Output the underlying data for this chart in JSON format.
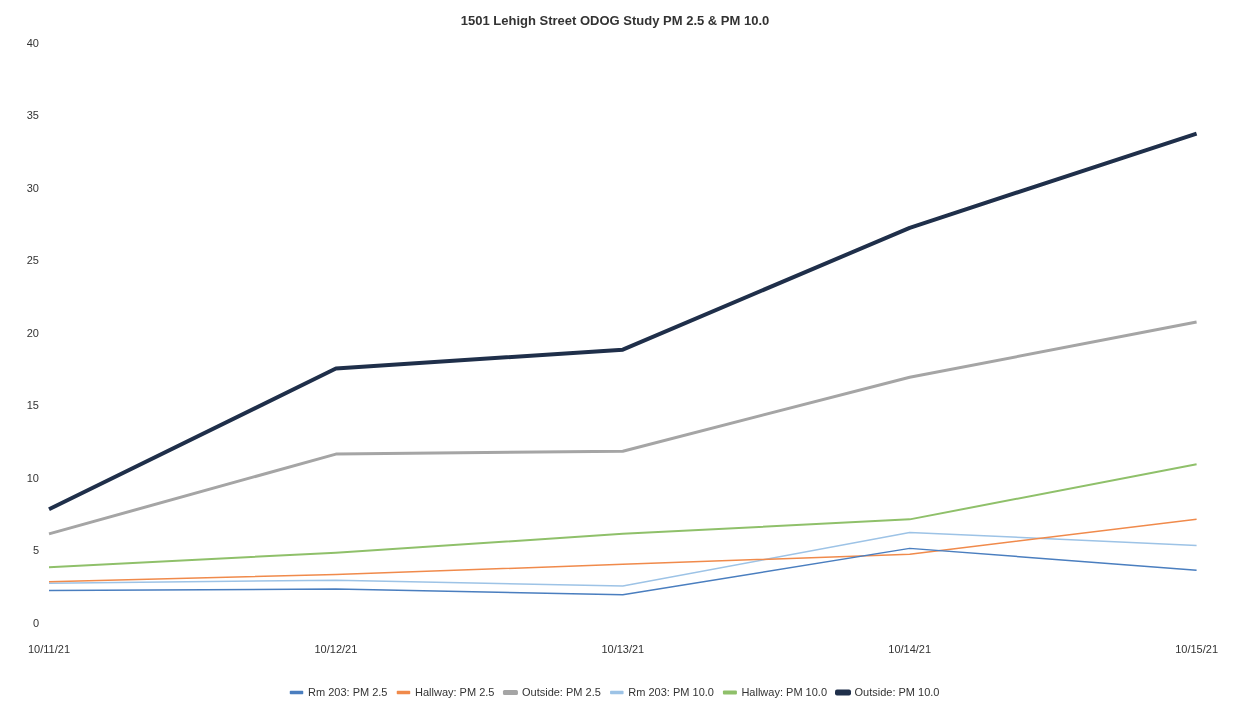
{
  "chart_data": {
    "type": "line",
    "title": "1501 Lehigh Street ODOG Study PM 2.5 & PM 10.0",
    "categories": [
      "10/11/21",
      "10/12/21",
      "10/13/21",
      "10/14/21",
      "10/15/21"
    ],
    "ylim": [
      0,
      40
    ],
    "yticks": [
      0,
      5,
      10,
      15,
      20,
      25,
      30,
      35,
      40
    ],
    "grid": false,
    "legend": "bottom",
    "marker": "none",
    "series": [
      {
        "name": "Rm 203: PM 2.5",
        "color": "#4a7ebf",
        "values": [
          2.3,
          2.4,
          2.0,
          5.2,
          3.7
        ]
      },
      {
        "name": "Hallway: PM 2.5",
        "color": "#f08a4b",
        "values": [
          2.9,
          3.4,
          4.1,
          4.8,
          7.2
        ]
      },
      {
        "name": "Outside: PM 2.5",
        "color": "#a5a5a5",
        "values": [
          6.2,
          11.7,
          11.9,
          17.0,
          20.8
        ]
      },
      {
        "name": "Rm 203: PM 10.0",
        "color": "#9dc3e6",
        "values": [
          2.8,
          3.0,
          2.6,
          6.3,
          5.4
        ]
      },
      {
        "name": "Hallway: PM 10.0",
        "color": "#8fc06a",
        "values": [
          3.9,
          4.9,
          6.2,
          7.2,
          11.0
        ]
      },
      {
        "name": "Outside: PM 10.0",
        "color": "#1f2f4a",
        "values": [
          7.9,
          17.6,
          18.9,
          27.3,
          33.8
        ]
      }
    ]
  }
}
